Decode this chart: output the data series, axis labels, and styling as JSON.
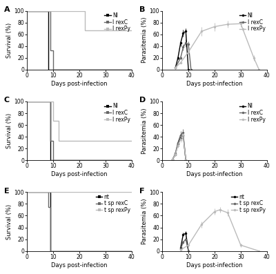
{
  "panel_A": {
    "ylabel": "Survival (%)",
    "xlabel": "Days post-infection",
    "NI": {
      "x": [
        0,
        8,
        8,
        40
      ],
      "y": [
        100,
        100,
        0,
        0
      ]
    },
    "IrexC": {
      "x": [
        0,
        9,
        9,
        10,
        10,
        13,
        13,
        40
      ],
      "y": [
        100,
        100,
        33,
        33,
        0,
        0,
        0,
        0
      ]
    },
    "IrexPy": {
      "x": [
        0,
        22,
        22,
        40
      ],
      "y": [
        100,
        100,
        67,
        67
      ]
    },
    "colors": {
      "NI": "#000000",
      "IrexC": "#666666",
      "IrexPy": "#bbbbbb"
    },
    "xlim": [
      0,
      40
    ],
    "ylim": [
      0,
      100
    ]
  },
  "panel_B": {
    "ylabel": "Parasitemia (%)",
    "xlabel": "Days post-infection",
    "NI": {
      "x": [
        5,
        6,
        7,
        8,
        9,
        10
      ],
      "y": [
        3,
        20,
        45,
        62,
        65,
        0
      ],
      "yerr": [
        0.5,
        3,
        5,
        6,
        5,
        0
      ]
    },
    "IrexC": {
      "x": [
        5,
        7,
        8,
        9,
        10,
        11
      ],
      "y": [
        3,
        20,
        38,
        45,
        43,
        0
      ],
      "yerr": [
        0.5,
        3,
        5,
        6,
        5,
        0
      ]
    },
    "IrexPy": {
      "x": [
        5,
        7,
        10,
        15,
        20,
        25,
        30,
        35,
        37
      ],
      "y": [
        3,
        12,
        30,
        65,
        73,
        77,
        78,
        20,
        0
      ],
      "yerr": [
        0.5,
        2,
        4,
        8,
        7,
        6,
        5,
        5,
        0
      ]
    },
    "colors": {
      "NI": "#000000",
      "IrexC": "#666666",
      "IrexPy": "#bbbbbb"
    },
    "xlim": [
      0,
      40
    ],
    "ylim": [
      0,
      100
    ]
  },
  "panel_C": {
    "ylabel": "Survival (%)",
    "xlabel": "Days post-infection",
    "NI": {
      "x": [
        0,
        9,
        9,
        40
      ],
      "y": [
        100,
        100,
        0,
        0
      ]
    },
    "IrexC": {
      "x": [
        0,
        9,
        9,
        10,
        10,
        40
      ],
      "y": [
        100,
        100,
        33,
        33,
        0,
        0
      ]
    },
    "IrexPy": {
      "x": [
        0,
        10,
        10,
        12,
        12,
        40
      ],
      "y": [
        100,
        100,
        67,
        67,
        33,
        33
      ]
    },
    "colors": {
      "NI": "#000000",
      "IrexC": "#666666",
      "IrexPy": "#bbbbbb"
    },
    "xlim": [
      0,
      40
    ],
    "ylim": [
      0,
      100
    ]
  },
  "panel_D": {
    "ylabel": "Parasitemia (%)",
    "xlabel": "Days post-infection",
    "NI": {
      "x": [
        4,
        5,
        6,
        7,
        8,
        9
      ],
      "y": [
        2,
        10,
        28,
        38,
        42,
        0
      ],
      "yerr": [
        0.3,
        2,
        4,
        5,
        5,
        0
      ]
    },
    "IrexC": {
      "x": [
        4,
        5,
        6,
        7,
        8,
        9
      ],
      "y": [
        2,
        12,
        30,
        43,
        47,
        0
      ],
      "yerr": [
        0.3,
        2,
        4,
        6,
        6,
        0
      ]
    },
    "IrexPy": {
      "x": [
        4,
        5,
        6,
        7,
        8,
        9
      ],
      "y": [
        2,
        10,
        25,
        36,
        44,
        0
      ],
      "yerr": [
        0.3,
        2,
        3,
        5,
        6,
        0
      ]
    },
    "colors": {
      "NI": "#000000",
      "IrexC": "#666666",
      "IrexPy": "#bbbbbb"
    },
    "xlim": [
      0,
      40
    ],
    "ylim": [
      0,
      100
    ]
  },
  "panel_E": {
    "ylabel": "Survival (%)",
    "xlabel": "Days post-infection",
    "nt": {
      "x": [
        0,
        9,
        9,
        40
      ],
      "y": [
        100,
        100,
        0,
        0
      ]
    },
    "tsp_rexC": {
      "x": [
        0,
        8,
        8,
        9,
        9,
        40
      ],
      "y": [
        100,
        100,
        75,
        75,
        0,
        0
      ]
    },
    "tsp_rexPy": {
      "x": [
        0,
        40
      ],
      "y": [
        100,
        100
      ]
    },
    "colors": {
      "nt": "#000000",
      "tsp_rexC": "#666666",
      "tsp_rexPy": "#bbbbbb"
    },
    "xlim": [
      0,
      40
    ],
    "ylim": [
      0,
      100
    ]
  },
  "panel_F": {
    "ylabel": "Parasitemia (%)",
    "xlabel": "Days post-infection",
    "nt": {
      "x": [
        7,
        8,
        9,
        10
      ],
      "y": [
        5,
        28,
        30,
        0
      ],
      "yerr": [
        1,
        3,
        4,
        0
      ]
    },
    "tsp_rexC": {
      "x": [
        7,
        8,
        9,
        10
      ],
      "y": [
        3,
        15,
        20,
        0
      ],
      "yerr": [
        0.5,
        2,
        3,
        0
      ]
    },
    "tsp_rexPy": {
      "x": [
        7,
        10,
        15,
        20,
        22,
        25,
        30,
        37
      ],
      "y": [
        2,
        10,
        45,
        67,
        70,
        65,
        10,
        0
      ],
      "yerr": [
        0.5,
        2,
        5,
        5,
        5,
        6,
        3,
        0
      ]
    },
    "colors": {
      "nt": "#000000",
      "tsp_rexC": "#666666",
      "tsp_rexPy": "#bbbbbb"
    },
    "xlim": [
      0,
      40
    ],
    "ylim": [
      0,
      100
    ]
  },
  "legend_labels_ABC": [
    "NI",
    "I rexC",
    "I rexPy"
  ],
  "legend_labels_EF": [
    "nt",
    "t sp rexC",
    "t sp rexPy"
  ]
}
